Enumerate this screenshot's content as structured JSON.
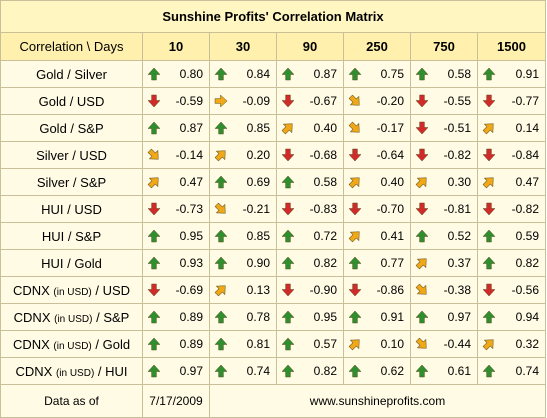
{
  "title": "Sunshine Profits' Correlation Matrix",
  "header": {
    "label": "Correlation \\ Days",
    "days": [
      "10",
      "30",
      "90",
      "250",
      "750",
      "1500"
    ]
  },
  "rows": [
    {
      "label": "Gold / Silver",
      "cells": [
        {
          "value": "0.80",
          "dir": "up"
        },
        {
          "value": "0.84",
          "dir": "up"
        },
        {
          "value": "0.87",
          "dir": "up"
        },
        {
          "value": "0.75",
          "dir": "up"
        },
        {
          "value": "0.58",
          "dir": "up"
        },
        {
          "value": "0.91",
          "dir": "up"
        }
      ]
    },
    {
      "label": "Gold / USD",
      "cells": [
        {
          "value": "-0.59",
          "dir": "down"
        },
        {
          "value": "-0.09",
          "dir": "right"
        },
        {
          "value": "-0.67",
          "dir": "down"
        },
        {
          "value": "-0.20",
          "dir": "down-right"
        },
        {
          "value": "-0.55",
          "dir": "down"
        },
        {
          "value": "-0.77",
          "dir": "down"
        }
      ]
    },
    {
      "label": "Gold / S&P",
      "cells": [
        {
          "value": "0.87",
          "dir": "up"
        },
        {
          "value": "0.85",
          "dir": "up"
        },
        {
          "value": "0.40",
          "dir": "up-right"
        },
        {
          "value": "-0.17",
          "dir": "down-right"
        },
        {
          "value": "-0.51",
          "dir": "down"
        },
        {
          "value": "0.14",
          "dir": "up-right"
        }
      ]
    },
    {
      "label": "Silver / USD",
      "cells": [
        {
          "value": "-0.14",
          "dir": "down-right"
        },
        {
          "value": "0.20",
          "dir": "up-right"
        },
        {
          "value": "-0.68",
          "dir": "down"
        },
        {
          "value": "-0.64",
          "dir": "down"
        },
        {
          "value": "-0.82",
          "dir": "down"
        },
        {
          "value": "-0.84",
          "dir": "down"
        }
      ]
    },
    {
      "label": "Silver / S&P",
      "cells": [
        {
          "value": "0.47",
          "dir": "up-right"
        },
        {
          "value": "0.69",
          "dir": "up"
        },
        {
          "value": "0.58",
          "dir": "up"
        },
        {
          "value": "0.40",
          "dir": "up-right"
        },
        {
          "value": "0.30",
          "dir": "up-right"
        },
        {
          "value": "0.47",
          "dir": "up-right"
        }
      ]
    },
    {
      "label": "HUI / USD",
      "cells": [
        {
          "value": "-0.73",
          "dir": "down"
        },
        {
          "value": "-0.21",
          "dir": "down-right"
        },
        {
          "value": "-0.83",
          "dir": "down"
        },
        {
          "value": "-0.70",
          "dir": "down"
        },
        {
          "value": "-0.81",
          "dir": "down"
        },
        {
          "value": "-0.82",
          "dir": "down"
        }
      ]
    },
    {
      "label": "HUI / S&P",
      "cells": [
        {
          "value": "0.95",
          "dir": "up"
        },
        {
          "value": "0.85",
          "dir": "up"
        },
        {
          "value": "0.72",
          "dir": "up"
        },
        {
          "value": "0.41",
          "dir": "up-right"
        },
        {
          "value": "0.52",
          "dir": "up"
        },
        {
          "value": "0.59",
          "dir": "up"
        }
      ]
    },
    {
      "label": "HUI / Gold",
      "cells": [
        {
          "value": "0.93",
          "dir": "up"
        },
        {
          "value": "0.90",
          "dir": "up"
        },
        {
          "value": "0.82",
          "dir": "up"
        },
        {
          "value": "0.77",
          "dir": "up"
        },
        {
          "value": "0.37",
          "dir": "up-right"
        },
        {
          "value": "0.82",
          "dir": "up"
        }
      ]
    },
    {
      "label": "CDNX",
      "note": "(in USD)",
      "suffix": "/ USD",
      "cells": [
        {
          "value": "-0.69",
          "dir": "down"
        },
        {
          "value": "0.13",
          "dir": "up-right"
        },
        {
          "value": "-0.90",
          "dir": "down"
        },
        {
          "value": "-0.86",
          "dir": "down"
        },
        {
          "value": "-0.38",
          "dir": "down-right"
        },
        {
          "value": "-0.56",
          "dir": "down"
        }
      ]
    },
    {
      "label": "CDNX",
      "note": "(in USD)",
      "suffix": "/ S&P",
      "cells": [
        {
          "value": "0.89",
          "dir": "up"
        },
        {
          "value": "0.78",
          "dir": "up"
        },
        {
          "value": "0.95",
          "dir": "up"
        },
        {
          "value": "0.91",
          "dir": "up"
        },
        {
          "value": "0.97",
          "dir": "up"
        },
        {
          "value": "0.94",
          "dir": "up"
        }
      ]
    },
    {
      "label": "CDNX",
      "note": "(in USD)",
      "suffix": "/ Gold",
      "cells": [
        {
          "value": "0.89",
          "dir": "up"
        },
        {
          "value": "0.81",
          "dir": "up"
        },
        {
          "value": "0.57",
          "dir": "up"
        },
        {
          "value": "0.10",
          "dir": "up-right"
        },
        {
          "value": "-0.44",
          "dir": "down-right"
        },
        {
          "value": "0.32",
          "dir": "up-right"
        }
      ]
    },
    {
      "label": "CDNX",
      "note": "(in USD)",
      "suffix": "/ HUI",
      "cells": [
        {
          "value": "0.97",
          "dir": "up"
        },
        {
          "value": "0.74",
          "dir": "up"
        },
        {
          "value": "0.82",
          "dir": "up"
        },
        {
          "value": "0.62",
          "dir": "up"
        },
        {
          "value": "0.61",
          "dir": "up"
        },
        {
          "value": "0.74",
          "dir": "up"
        }
      ]
    }
  ],
  "footer": {
    "data_as_of_label": "Data as of",
    "date": "7/17/2009",
    "website": "www.sunshineprofits.com"
  },
  "colors": {
    "arrow_up": "#2f8f2f",
    "arrow_down": "#d12a2a",
    "arrow_mid": "#f0a818",
    "header_bg": "#fff1ad",
    "body_bg": "#fffbe4"
  },
  "icons": {
    "up": "arrow-up-icon",
    "down": "arrow-down-icon",
    "up-right": "arrow-up-right-icon",
    "down-right": "arrow-down-right-icon",
    "right": "arrow-right-icon"
  }
}
